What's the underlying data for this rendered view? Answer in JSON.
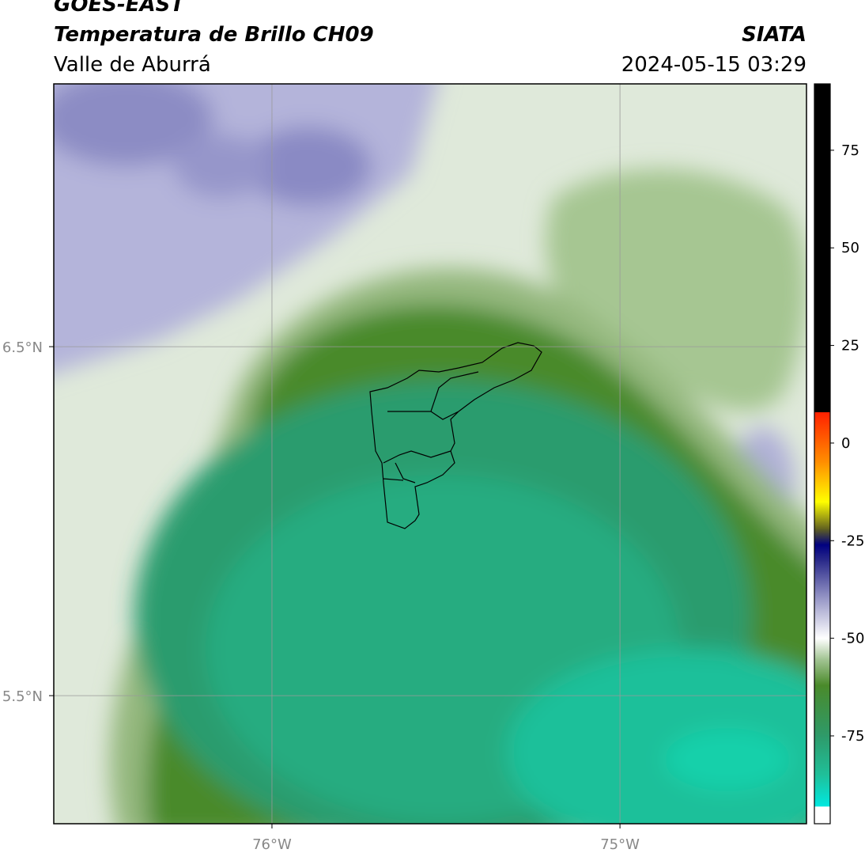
{
  "header": {
    "satellite": "GOES-EAST",
    "product": "Temperatura de Brillo CH09",
    "region": "Valle de Aburrá",
    "agency": "SIATA",
    "datetime": "2024-05-15 03:29"
  },
  "map": {
    "lon_range": [
      -76.627,
      -74.464
    ],
    "lat_range": [
      5.133,
      7.253
    ],
    "lon_ticks": [
      {
        "value": -76,
        "label": "76°W"
      },
      {
        "value": -75,
        "label": "75°W"
      }
    ],
    "lat_ticks": [
      {
        "value": 6.5,
        "label": "6.5°N"
      },
      {
        "value": 5.5,
        "label": "5.5°N"
      }
    ],
    "grid": true
  },
  "colorbar": {
    "range": [
      -97.5,
      92
    ],
    "ticks": [
      75,
      50,
      25,
      0,
      -25,
      -50,
      -75
    ],
    "under_color": "#ffffff",
    "stops": [
      {
        "value": -93,
        "color": "#00e8e0"
      },
      {
        "value": -85,
        "color": "#1fc09a"
      },
      {
        "value": -75,
        "color": "#2e9a6a"
      },
      {
        "value": -62,
        "color": "#4a8a2a"
      },
      {
        "value": -55,
        "color": "#a8c89a"
      },
      {
        "value": -50,
        "color": "#ffffff"
      },
      {
        "value": -40,
        "color": "#9a9ac8"
      },
      {
        "value": -30,
        "color": "#2a2a8a"
      },
      {
        "value": -26,
        "color": "#000080"
      },
      {
        "value": -22,
        "color": "#606020"
      },
      {
        "value": -15,
        "color": "#ffff00"
      },
      {
        "value": -5,
        "color": "#ff9000"
      },
      {
        "value": 8,
        "color": "#ff2000"
      },
      {
        "value": 8,
        "color": "#000000"
      },
      {
        "value": 92,
        "color": "#000000"
      }
    ]
  }
}
